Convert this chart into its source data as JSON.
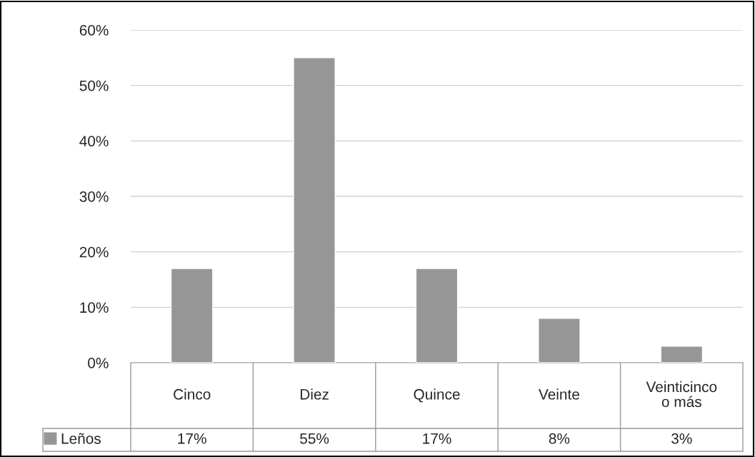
{
  "chart_data": {
    "type": "bar",
    "categories": [
      "Cinco",
      "Diez",
      "Quince",
      "Veinte",
      "Veinticinco\no más"
    ],
    "series": [
      {
        "name": "Leños",
        "color": "#969696",
        "values": [
          17,
          55,
          17,
          8,
          3
        ],
        "value_labels": [
          "17%",
          "55%",
          "17%",
          "8%",
          "3%"
        ]
      }
    ],
    "ylim": [
      0,
      60
    ],
    "yticks": [
      {
        "value": 0,
        "label": "0%"
      },
      {
        "value": 10,
        "label": "10%"
      },
      {
        "value": 20,
        "label": "20%"
      },
      {
        "value": 30,
        "label": "30%"
      },
      {
        "value": 40,
        "label": "40%"
      },
      {
        "value": 50,
        "label": "50%"
      },
      {
        "value": 60,
        "label": "60%"
      }
    ],
    "grid": "y",
    "legend": "bottom"
  }
}
